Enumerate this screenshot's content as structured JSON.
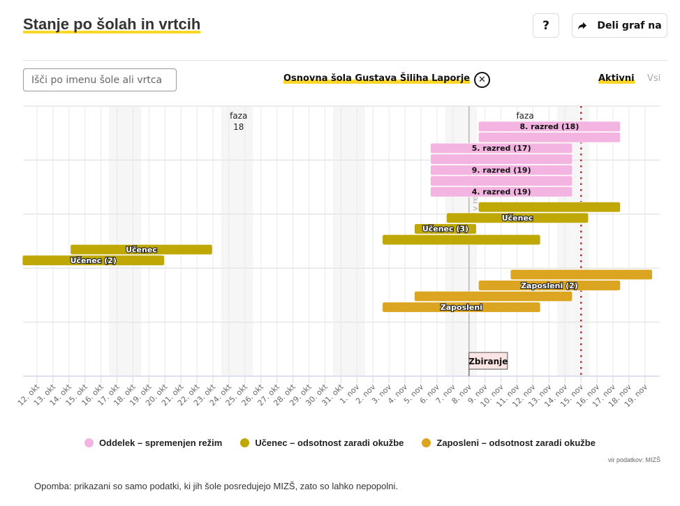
{
  "header": {
    "title": "Stanje po šolah in vrtcih",
    "help_label": "?",
    "share_label": "Deli graf na",
    "share_icon": "share-arrow-icon"
  },
  "filters": {
    "search_placeholder": "Išči po imenu šole ali vrtca",
    "search_value": "",
    "selected_school": "Osnovna šola Gustava Šiliha Laporje",
    "clear_icon": "close-circle-icon",
    "status_active": "Aktivni",
    "status_all": "Vsi",
    "status_selected": "Aktivni"
  },
  "chart_data": {
    "type": "gantt",
    "title": "Stanje po šolah in vrtcih",
    "x_axis": {
      "type": "date",
      "start": "12. okt",
      "end": "19. nov",
      "tick_labels": [
        "12. okt",
        "13. okt",
        "14. okt",
        "15. okt",
        "16. okt",
        "17. okt",
        "18. okt",
        "19. okt",
        "20. okt",
        "21. okt",
        "22. okt",
        "23. okt",
        "24. okt",
        "25. okt",
        "26. okt",
        "27. okt",
        "28. okt",
        "29. okt",
        "30. okt",
        "31. okt",
        "1. nov",
        "2. nov",
        "3. nov",
        "4. nov",
        "5. nov",
        "6. nov",
        "7. nov",
        "8. nov",
        "9. nov",
        "10. nov",
        "11. nov",
        "12. nov",
        "13. nov",
        "14. nov",
        "15. nov",
        "16. nov",
        "17. nov",
        "18. nov",
        "19. nov"
      ]
    },
    "weekend_day_indices": [
      5,
      6,
      12,
      13,
      19,
      20,
      26,
      27,
      33,
      34
    ],
    "grid": true,
    "row_bands": 5,
    "annotations": [
      {
        "type": "text",
        "label": "faza",
        "sublabel": "18",
        "day_index": 12.6
      },
      {
        "type": "text",
        "label": "faza",
        "sublabel": "",
        "day_index": 30.5
      },
      {
        "type": "vline",
        "style": "solid-gray",
        "day_index": 27,
        "label": "v re...a HAT"
      },
      {
        "type": "vline",
        "style": "dotted-red",
        "day_index": 34
      }
    ],
    "markers": [
      {
        "label": "Zbiranje",
        "day_index": 27
      }
    ],
    "legend": [
      {
        "key": "oddelek",
        "label": "Oddelek – spremenjen režim",
        "color": "#f4b4e1"
      },
      {
        "key": "ucenec",
        "label": "Učenec – odsotnost zaradi okužbe",
        "color": "#bfa704"
      },
      {
        "key": "zaposleni",
        "label": "Zaposleni – odsotnost zaradi okužbe",
        "color": "#dca521"
      }
    ],
    "legend_position": "bottom-center",
    "bars": [
      {
        "category": "oddelek",
        "label": "8. razred (18)",
        "start": 28,
        "end": 37,
        "lane": 0
      },
      {
        "category": "oddelek",
        "label": "",
        "start": 28,
        "end": 37,
        "lane": 1
      },
      {
        "category": "oddelek",
        "label": "5. razred (17)",
        "start": 25,
        "end": 34,
        "lane": 2
      },
      {
        "category": "oddelek",
        "label": "",
        "start": 25,
        "end": 34,
        "lane": 3
      },
      {
        "category": "oddelek",
        "label": "9. razred (19)",
        "start": 25,
        "end": 34,
        "lane": 4
      },
      {
        "category": "oddelek",
        "label": "",
        "start": 25,
        "end": 34,
        "lane": 5
      },
      {
        "category": "oddelek",
        "label": "4. razred (19)",
        "start": 25,
        "end": 34,
        "lane": 6
      },
      {
        "category": "ucenec",
        "label": "",
        "start": 28,
        "end": 37,
        "lane": 7.4
      },
      {
        "category": "ucenec",
        "label": "Učenec",
        "start": 26,
        "end": 35,
        "lane": 8.4
      },
      {
        "category": "ucenec",
        "label": "Učenec (3)",
        "start": 24,
        "end": 28,
        "lane": 9.4
      },
      {
        "category": "ucenec",
        "label": "",
        "start": 22,
        "end": 32,
        "lane": 10.4
      },
      {
        "category": "ucenec",
        "label": "Učenec",
        "start": 2.5,
        "end": 11.5,
        "lane": 11.3
      },
      {
        "category": "ucenec",
        "label": "Učenec (2)",
        "start": -0.5,
        "end": 8.5,
        "lane": 12.3
      },
      {
        "category": "zaposleni",
        "label": "",
        "start": 30,
        "end": 39,
        "lane": 13.6
      },
      {
        "category": "zaposleni",
        "label": "Zaposleni (2)",
        "start": 28,
        "end": 37,
        "lane": 14.6
      },
      {
        "category": "zaposleni",
        "label": "",
        "start": 24,
        "end": 34,
        "lane": 15.6
      },
      {
        "category": "zaposleni",
        "label": "Zaposleni",
        "start": 22,
        "end": 32,
        "lane": 16.6
      }
    ]
  },
  "footer": {
    "source": "vir podatkov: MIZŠ",
    "note": "Opomba: prikazani so samo podatki, ki jih šole posredujejo MIZŠ, zato so lahko nepopolni."
  }
}
